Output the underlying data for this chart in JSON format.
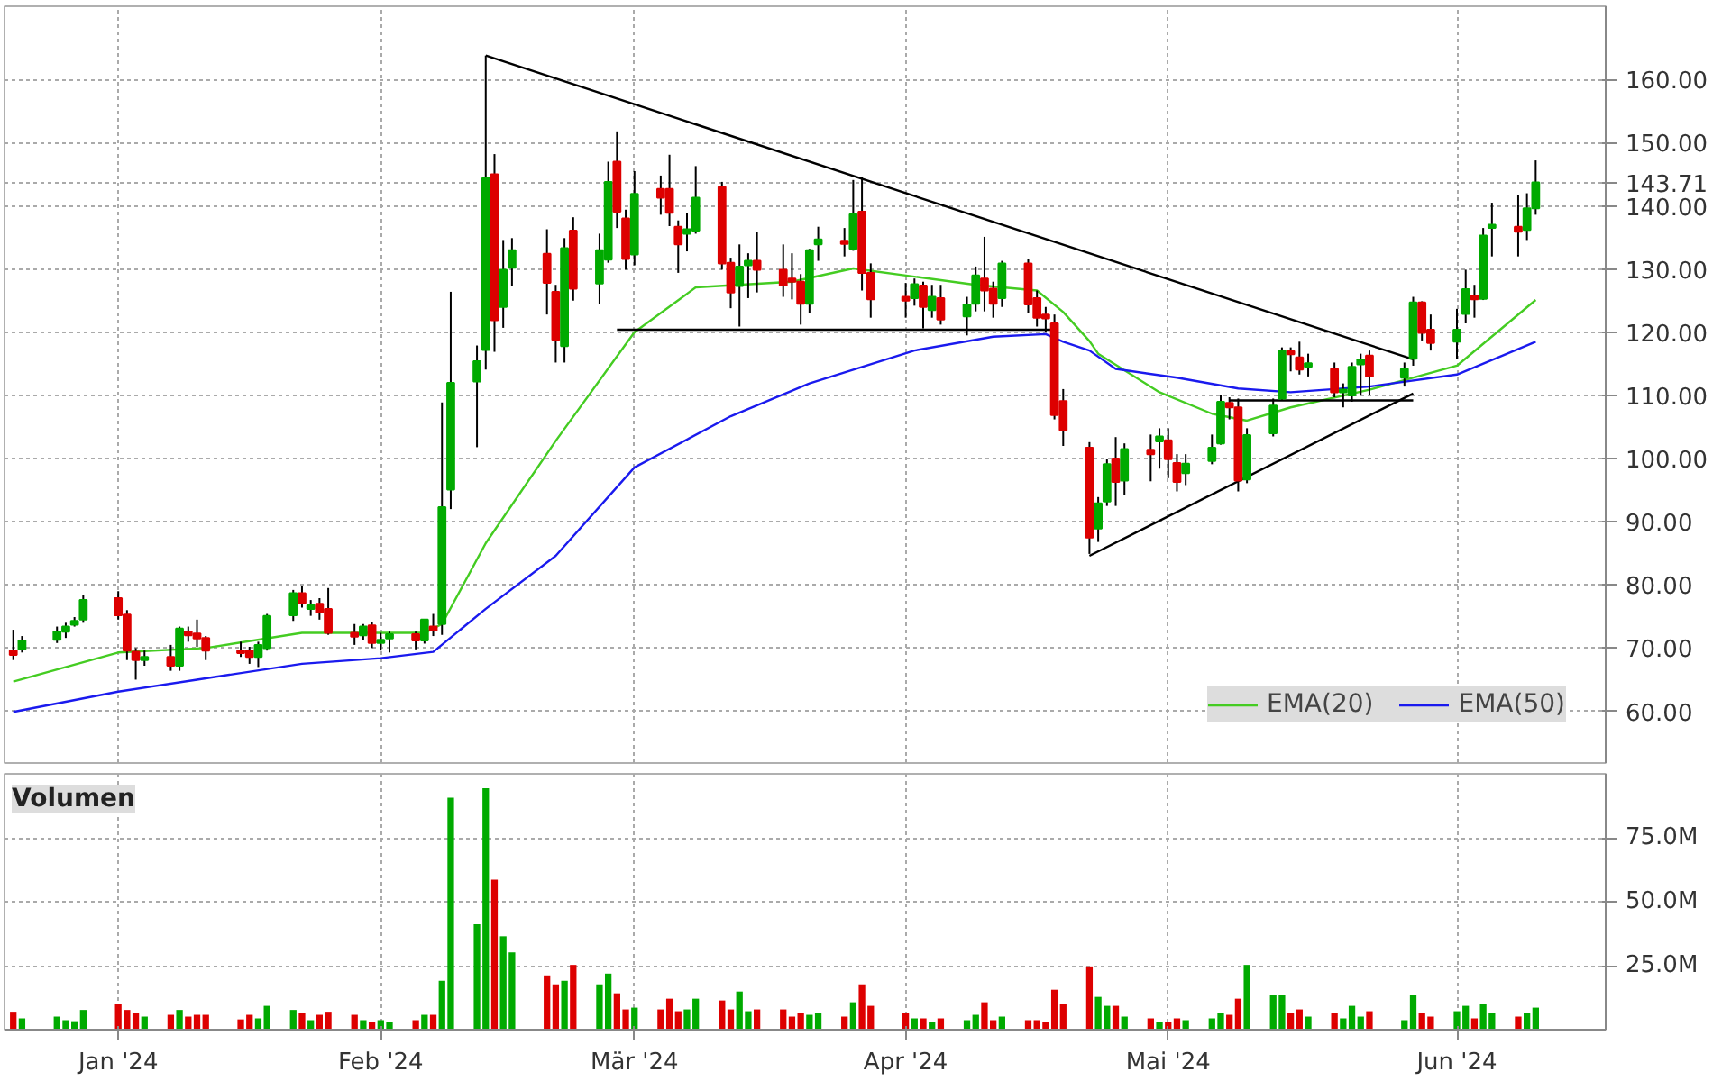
{
  "chart_data": [
    {
      "type": "candlestick",
      "x": [
        "2023-12-21",
        "2023-12-22",
        "2023-12-26",
        "2023-12-27",
        "2023-12-28",
        "2023-12-29",
        "2024-01-02",
        "2024-01-03",
        "2024-01-04",
        "2024-01-05",
        "2024-01-08",
        "2024-01-09",
        "2024-01-10",
        "2024-01-11",
        "2024-01-12",
        "2024-01-16",
        "2024-01-17",
        "2024-01-18",
        "2024-01-19",
        "2024-01-22",
        "2024-01-23",
        "2024-01-24",
        "2024-01-25",
        "2024-01-26",
        "2024-01-29",
        "2024-01-30",
        "2024-01-31",
        "2024-02-01",
        "2024-02-02",
        "2024-02-05",
        "2024-02-06",
        "2024-02-07",
        "2024-02-08",
        "2024-02-09",
        "2024-02-12",
        "2024-02-13",
        "2024-02-14",
        "2024-02-15",
        "2024-02-16",
        "2024-02-20",
        "2024-02-21",
        "2024-02-22",
        "2024-02-23",
        "2024-02-26",
        "2024-02-27",
        "2024-02-28",
        "2024-02-29",
        "2024-03-01",
        "2024-03-04",
        "2024-03-05",
        "2024-03-06",
        "2024-03-07",
        "2024-03-08",
        "2024-03-11",
        "2024-03-12",
        "2024-03-13",
        "2024-03-14",
        "2024-03-15",
        "2024-03-18",
        "2024-03-19",
        "2024-03-20",
        "2024-03-21",
        "2024-03-22",
        "2024-03-25",
        "2024-03-26",
        "2024-03-27",
        "2024-03-28",
        "2024-04-01",
        "2024-04-02",
        "2024-04-03",
        "2024-04-04",
        "2024-04-05",
        "2024-04-08",
        "2024-04-09",
        "2024-04-10",
        "2024-04-11",
        "2024-04-12",
        "2024-04-15",
        "2024-04-16",
        "2024-04-17",
        "2024-04-18",
        "2024-04-19",
        "2024-04-22",
        "2024-04-23",
        "2024-04-24",
        "2024-04-25",
        "2024-04-26",
        "2024-04-29",
        "2024-04-30",
        "2024-05-01",
        "2024-05-02",
        "2024-05-03",
        "2024-05-06",
        "2024-05-07",
        "2024-05-08",
        "2024-05-09",
        "2024-05-10",
        "2024-05-13",
        "2024-05-14",
        "2024-05-15",
        "2024-05-16",
        "2024-05-17",
        "2024-05-20",
        "2024-05-21",
        "2024-05-22",
        "2024-05-23",
        "2024-05-24",
        "2024-05-28",
        "2024-05-29",
        "2024-05-30",
        "2024-05-31",
        "2024-06-03",
        "2024-06-04",
        "2024-06-05",
        "2024-06-06",
        "2024-06-07",
        "2024-06-10",
        "2024-06-11",
        "2024-06-12"
      ],
      "ohlc": [
        [
          69.6,
          72.9,
          68.1,
          68.9
        ],
        [
          69.8,
          71.9,
          69.3,
          71.2
        ],
        [
          71.3,
          73.4,
          70.8,
          72.6
        ],
        [
          72.6,
          74.0,
          71.6,
          73.4
        ],
        [
          73.7,
          74.9,
          73.4,
          74.3
        ],
        [
          74.5,
          78.4,
          74.0,
          77.6
        ],
        [
          77.9,
          79.0,
          74.5,
          75.2
        ],
        [
          75.3,
          76.0,
          68.1,
          69.6
        ],
        [
          69.4,
          70.0,
          65.0,
          68.1
        ],
        [
          68.1,
          69.6,
          67.2,
          68.6
        ],
        [
          68.6,
          70.5,
          66.4,
          67.2
        ],
        [
          67.2,
          73.4,
          66.4,
          73.1
        ],
        [
          72.6,
          73.4,
          71.0,
          72.0
        ],
        [
          72.3,
          74.5,
          70.2,
          71.5
        ],
        [
          71.6,
          71.9,
          68.1,
          69.6
        ],
        [
          69.6,
          71.0,
          68.6,
          69.2
        ],
        [
          69.6,
          70.2,
          67.5,
          68.6
        ],
        [
          68.6,
          71.0,
          67.0,
          70.5
        ],
        [
          70.0,
          75.4,
          69.6,
          75.1
        ],
        [
          75.2,
          79.2,
          74.3,
          78.7
        ],
        [
          78.7,
          79.8,
          76.4,
          77.1
        ],
        [
          76.2,
          77.6,
          75.1,
          76.8
        ],
        [
          77.0,
          77.9,
          74.5,
          75.6
        ],
        [
          76.2,
          79.5,
          72.1,
          72.4
        ],
        [
          72.4,
          73.8,
          70.5,
          71.8
        ],
        [
          72.0,
          73.8,
          71.2,
          73.4
        ],
        [
          73.6,
          74.1,
          70.0,
          70.8
        ],
        [
          70.8,
          72.4,
          69.6,
          71.3
        ],
        [
          71.5,
          72.6,
          69.3,
          72.2
        ],
        [
          72.2,
          72.6,
          69.8,
          71.2
        ],
        [
          71.2,
          74.5,
          70.7,
          74.5
        ],
        [
          73.4,
          75.4,
          71.9,
          72.8
        ],
        [
          73.8,
          108.9,
          72.1,
          92.3
        ],
        [
          95.1,
          126.4,
          92.0,
          112.0
        ],
        [
          112.2,
          117.9,
          101.8,
          115.4
        ],
        [
          117.2,
          163.8,
          114.1,
          144.4
        ],
        [
          145.0,
          148.2,
          116.9,
          121.9
        ],
        [
          124.0,
          134.6,
          120.7,
          129.9
        ],
        [
          130.2,
          134.9,
          127.3,
          133.0
        ],
        [
          132.4,
          136.3,
          122.8,
          127.8
        ],
        [
          126.4,
          127.5,
          115.2,
          118.8
        ],
        [
          117.8,
          134.9,
          115.2,
          133.3
        ],
        [
          136.1,
          138.2,
          125.0,
          126.9
        ],
        [
          127.7,
          135.6,
          124.4,
          133.0
        ],
        [
          131.5,
          147.0,
          131.0,
          143.8
        ],
        [
          147.0,
          151.8,
          136.5,
          139.1
        ],
        [
          138.0,
          139.4,
          129.9,
          131.6
        ],
        [
          132.3,
          145.5,
          130.6,
          141.9
        ],
        [
          142.7,
          144.8,
          138.6,
          141.3
        ],
        [
          142.7,
          148.1,
          136.8,
          138.9
        ],
        [
          136.7,
          137.7,
          129.4,
          133.9
        ],
        [
          135.6,
          138.9,
          132.8,
          136.3
        ],
        [
          136.1,
          146.3,
          135.6,
          141.3
        ],
        [
          143.0,
          143.8,
          129.9,
          130.9
        ],
        [
          131.0,
          131.8,
          123.8,
          126.3
        ],
        [
          127.3,
          133.9,
          120.9,
          130.4
        ],
        [
          130.6,
          132.5,
          125.4,
          131.3
        ],
        [
          131.3,
          135.9,
          126.3,
          129.9
        ],
        [
          129.9,
          133.9,
          125.6,
          127.4
        ],
        [
          128.5,
          132.5,
          125.2,
          128.0
        ],
        [
          128.0,
          129.2,
          121.2,
          124.5
        ],
        [
          124.5,
          133.2,
          123.1,
          133.0
        ],
        [
          133.9,
          136.7,
          131.3,
          134.7
        ],
        [
          134.5,
          136.5,
          132.0,
          134.0
        ],
        [
          133.2,
          144.1,
          132.9,
          138.7
        ],
        [
          139.1,
          144.6,
          126.6,
          129.4
        ],
        [
          129.4,
          130.9,
          122.3,
          125.2
        ],
        [
          125.6,
          127.8,
          122.3,
          125.0
        ],
        [
          125.4,
          128.5,
          124.2,
          127.6
        ],
        [
          127.4,
          128.0,
          120.6,
          124.0
        ],
        [
          123.5,
          127.5,
          122.3,
          125.6
        ],
        [
          125.4,
          127.5,
          121.2,
          122.0
        ],
        [
          122.5,
          125.6,
          119.5,
          124.4
        ],
        [
          124.5,
          130.4,
          123.3,
          129.0
        ],
        [
          128.5,
          135.1,
          123.3,
          126.6
        ],
        [
          126.9,
          128.0,
          122.3,
          124.5
        ],
        [
          125.4,
          131.3,
          124.0,
          130.9
        ],
        [
          130.9,
          131.6,
          123.1,
          124.4
        ],
        [
          125.4,
          126.6,
          120.9,
          122.3
        ],
        [
          122.8,
          124.0,
          120.0,
          122.2
        ],
        [
          121.4,
          122.8,
          106.2,
          106.9
        ],
        [
          109.1,
          111.0,
          102.0,
          104.5
        ],
        [
          101.7,
          102.6,
          84.9,
          87.5
        ],
        [
          88.9,
          93.9,
          86.8,
          92.9
        ],
        [
          93.2,
          100.0,
          92.5,
          99.1
        ],
        [
          100.0,
          103.4,
          92.5,
          96.3
        ],
        [
          96.5,
          102.4,
          94.2,
          101.5
        ],
        [
          101.4,
          103.8,
          96.4,
          100.7
        ],
        [
          102.7,
          104.8,
          98.4,
          103.5
        ],
        [
          102.9,
          104.8,
          96.9,
          99.9
        ],
        [
          99.3,
          100.7,
          94.8,
          96.3
        ],
        [
          97.7,
          100.7,
          95.8,
          99.2
        ],
        [
          99.6,
          103.8,
          99.1,
          101.7
        ],
        [
          102.4,
          110.0,
          102.2,
          109.0
        ],
        [
          108.8,
          109.7,
          106.2,
          108.1
        ],
        [
          108.1,
          109.5,
          94.8,
          96.5
        ],
        [
          96.7,
          104.8,
          96.1,
          103.7
        ],
        [
          104.0,
          109.5,
          103.5,
          108.4
        ],
        [
          109.5,
          117.6,
          109.2,
          117.1
        ],
        [
          117.0,
          117.6,
          113.8,
          116.5
        ],
        [
          116.0,
          118.5,
          113.3,
          114.1
        ],
        [
          114.5,
          116.6,
          113.0,
          115.1
        ],
        [
          114.2,
          115.2,
          109.7,
          110.5
        ],
        [
          110.5,
          111.9,
          108.1,
          110.9
        ],
        [
          110.0,
          115.2,
          109.0,
          114.5
        ],
        [
          114.9,
          116.6,
          110.0,
          115.7
        ],
        [
          116.3,
          117.1,
          110.0,
          113.0
        ],
        [
          112.8,
          115.2,
          111.4,
          114.2
        ],
        [
          115.8,
          125.6,
          114.7,
          124.7
        ],
        [
          124.7,
          124.9,
          118.7,
          119.9
        ],
        [
          120.4,
          122.8,
          117.1,
          118.3
        ],
        [
          118.5,
          123.7,
          115.7,
          120.4
        ],
        [
          122.9,
          129.9,
          121.4,
          126.8
        ],
        [
          125.8,
          127.5,
          122.3,
          125.2
        ],
        [
          125.3,
          136.5,
          125.1,
          135.3
        ],
        [
          136.5,
          140.5,
          132.0,
          137.0
        ],
        [
          136.7,
          141.7,
          132.0,
          135.9
        ],
        [
          136.2,
          142.0,
          134.6,
          139.6
        ],
        [
          139.6,
          147.2,
          138.6,
          143.71
        ]
      ],
      "colors": [
        "#dd0000",
        "#00aa00",
        "#00aa00",
        "#00aa00",
        "#00aa00",
        "#00aa00",
        "#dd0000",
        "#dd0000",
        "#dd0000",
        "#00aa00",
        "#dd0000",
        "#00aa00",
        "#dd0000",
        "#dd0000",
        "#dd0000",
        "#dd0000",
        "#dd0000",
        "#00aa00",
        "#00aa00",
        "#00aa00",
        "#dd0000",
        "#00aa00",
        "#dd0000",
        "#dd0000",
        "#dd0000",
        "#00aa00",
        "#dd0000",
        "#00aa00",
        "#00aa00",
        "#dd0000",
        "#00aa00",
        "#dd0000",
        "#00aa00",
        "#00aa00",
        "#00aa00",
        "#00aa00",
        "#dd0000",
        "#00aa00",
        "#00aa00",
        "#dd0000",
        "#dd0000",
        "#00aa00",
        "#dd0000",
        "#00aa00",
        "#00aa00",
        "#dd0000",
        "#dd0000",
        "#00aa00",
        "#dd0000",
        "#dd0000",
        "#dd0000",
        "#00aa00",
        "#00aa00",
        "#dd0000",
        "#dd0000",
        "#00aa00",
        "#00aa00",
        "#dd0000",
        "#dd0000",
        "#dd0000",
        "#dd0000",
        "#00aa00",
        "#00aa00",
        "#dd0000",
        "#00aa00",
        "#dd0000",
        "#dd0000",
        "#dd0000",
        "#00aa00",
        "#dd0000",
        "#00aa00",
        "#dd0000",
        "#00aa00",
        "#00aa00",
        "#dd0000",
        "#dd0000",
        "#00aa00",
        "#dd0000",
        "#dd0000",
        "#dd0000",
        "#dd0000",
        "#dd0000",
        "#dd0000",
        "#00aa00",
        "#00aa00",
        "#dd0000",
        "#00aa00",
        "#dd0000",
        "#00aa00",
        "#dd0000",
        "#dd0000",
        "#00aa00",
        "#00aa00",
        "#00aa00",
        "#dd0000",
        "#dd0000",
        "#00aa00",
        "#00aa00",
        "#00aa00",
        "#dd0000",
        "#dd0000",
        "#00aa00",
        "#dd0000",
        "#00aa00",
        "#00aa00",
        "#00aa00",
        "#dd0000",
        "#00aa00",
        "#00aa00",
        "#dd0000",
        "#dd0000",
        "#00aa00",
        "#00aa00",
        "#dd0000",
        "#00aa00",
        "#00aa00",
        "#dd0000",
        "#00aa00",
        "#00aa00"
      ],
      "series": [
        {
          "type": "line",
          "name": "EMA(20)",
          "color": "#44cc22",
          "x": [
            "2023-12-21",
            "2024-01-02",
            "2024-01-12",
            "2024-01-23",
            "2024-02-06",
            "2024-02-08",
            "2024-02-13",
            "2024-02-21",
            "2024-03-01",
            "2024-03-08",
            "2024-03-19",
            "2024-03-26",
            "2024-04-09",
            "2024-04-16",
            "2024-04-19",
            "2024-04-22",
            "2024-04-23",
            "2024-04-30",
            "2024-05-06",
            "2024-05-10",
            "2024-05-15",
            "2024-05-24",
            "2024-06-03",
            "2024-06-12"
          ],
          "values": [
            64.7,
            69.3,
            70.0,
            72.4,
            72.4,
            73.8,
            86.6,
            102.8,
            120.0,
            127.1,
            128.0,
            130.1,
            127.5,
            126.6,
            123.2,
            118.6,
            116.6,
            110.5,
            107.1,
            106.0,
            108.1,
            110.9,
            114.7,
            125.1
          ]
        },
        {
          "type": "line",
          "name": "EMA(50)",
          "color": "#1a1aee",
          "x": [
            "2023-12-21",
            "2024-01-02",
            "2024-01-11",
            "2024-01-23",
            "2024-02-01",
            "2024-02-07",
            "2024-02-13",
            "2024-02-21",
            "2024-03-01",
            "2024-03-12",
            "2024-03-21",
            "2024-04-02",
            "2024-04-11",
            "2024-04-17",
            "2024-04-19",
            "2024-04-22",
            "2024-04-25",
            "2024-05-02",
            "2024-05-09",
            "2024-05-15",
            "2024-05-24",
            "2024-06-03",
            "2024-06-12"
          ],
          "values": [
            59.9,
            63.1,
            65.0,
            67.5,
            68.4,
            69.4,
            76.2,
            84.6,
            98.6,
            106.7,
            111.9,
            117.1,
            119.3,
            119.7,
            118.5,
            117.1,
            114.2,
            112.8,
            111.1,
            110.5,
            111.4,
            113.3,
            118.5
          ]
        },
        {
          "type": "line",
          "color": "#000000",
          "x": [
            "2024-02-13",
            "2024-05-29"
          ],
          "values": [
            163.8,
            115.7
          ]
        },
        {
          "type": "line",
          "color": "#000000",
          "x": [
            "2024-02-28",
            "2024-04-18"
          ],
          "values": [
            120.4,
            120.4
          ]
        },
        {
          "type": "line",
          "color": "#000000",
          "x": [
            "2024-04-22",
            "2024-05-29"
          ],
          "values": [
            84.6,
            110.3
          ]
        },
        {
          "type": "line",
          "color": "#000000",
          "x": [
            "2024-05-08",
            "2024-05-29"
          ],
          "values": [
            109.2,
            109.2
          ]
        }
      ],
      "xlim": [
        "2023-12-20",
        "2024-06-20"
      ],
      "ylim": [
        51.8,
        171.6
      ],
      "xticks": [
        {
          "value": "2024-01-02",
          "label": null
        },
        {
          "value": "2024-02-01",
          "label": null
        },
        {
          "value": "2024-03-01",
          "label": null
        },
        {
          "value": "2024-04-01",
          "label": null
        },
        {
          "value": "2024-05-01",
          "label": null
        },
        {
          "value": "2024-06-03",
          "label": null
        }
      ],
      "yticks": [
        {
          "value": 60,
          "label": "60.00"
        },
        {
          "value": 70,
          "label": "70.00"
        },
        {
          "value": 80,
          "label": "80.00"
        },
        {
          "value": 90,
          "label": "90.00"
        },
        {
          "value": 100,
          "label": "100.00"
        },
        {
          "value": 110,
          "label": "110.00"
        },
        {
          "value": 120,
          "label": "120.00"
        },
        {
          "value": 130,
          "label": "130.00"
        },
        {
          "value": 140,
          "label": "140.00"
        },
        {
          "value": 143.71,
          "label": "143.71"
        },
        {
          "value": 150,
          "label": "150.00"
        },
        {
          "value": 160,
          "label": "160.00"
        }
      ],
      "tick_labels": "y",
      "grid": true,
      "legend": "bottom right"
    },
    {
      "type": "bar",
      "title": "Volumen",
      "x": [
        "2023-12-21",
        "2023-12-22",
        "2023-12-26",
        "2023-12-27",
        "2023-12-28",
        "2023-12-29",
        "2024-01-02",
        "2024-01-03",
        "2024-01-04",
        "2024-01-05",
        "2024-01-08",
        "2024-01-09",
        "2024-01-10",
        "2024-01-11",
        "2024-01-12",
        "2024-01-16",
        "2024-01-17",
        "2024-01-18",
        "2024-01-19",
        "2024-01-22",
        "2024-01-23",
        "2024-01-24",
        "2024-01-25",
        "2024-01-26",
        "2024-01-29",
        "2024-01-30",
        "2024-01-31",
        "2024-02-01",
        "2024-02-02",
        "2024-02-05",
        "2024-02-06",
        "2024-02-07",
        "2024-02-08",
        "2024-02-09",
        "2024-02-12",
        "2024-02-13",
        "2024-02-14",
        "2024-02-15",
        "2024-02-16",
        "2024-02-20",
        "2024-02-21",
        "2024-02-22",
        "2024-02-23",
        "2024-02-26",
        "2024-02-27",
        "2024-02-28",
        "2024-02-29",
        "2024-03-01",
        "2024-03-04",
        "2024-03-05",
        "2024-03-06",
        "2024-03-07",
        "2024-03-08",
        "2024-03-11",
        "2024-03-12",
        "2024-03-13",
        "2024-03-14",
        "2024-03-15",
        "2024-03-18",
        "2024-03-19",
        "2024-03-20",
        "2024-03-21",
        "2024-03-22",
        "2024-03-25",
        "2024-03-26",
        "2024-03-27",
        "2024-03-28",
        "2024-04-01",
        "2024-04-02",
        "2024-04-03",
        "2024-04-04",
        "2024-04-05",
        "2024-04-08",
        "2024-04-09",
        "2024-04-10",
        "2024-04-11",
        "2024-04-12",
        "2024-04-15",
        "2024-04-16",
        "2024-04-17",
        "2024-04-18",
        "2024-04-19",
        "2024-04-22",
        "2024-04-23",
        "2024-04-24",
        "2024-04-25",
        "2024-04-26",
        "2024-04-29",
        "2024-04-30",
        "2024-05-01",
        "2024-05-02",
        "2024-05-03",
        "2024-05-06",
        "2024-05-07",
        "2024-05-08",
        "2024-05-09",
        "2024-05-10",
        "2024-05-13",
        "2024-05-14",
        "2024-05-15",
        "2024-05-16",
        "2024-05-17",
        "2024-05-20",
        "2024-05-21",
        "2024-05-22",
        "2024-05-23",
        "2024-05-24",
        "2024-05-28",
        "2024-05-29",
        "2024-05-30",
        "2024-05-31",
        "2024-06-03",
        "2024-06-04",
        "2024-06-05",
        "2024-06-06",
        "2024-06-07",
        "2024-06-10",
        "2024-06-11",
        "2024-06-12"
      ],
      "values": [
        7.0,
        4.4,
        5.1,
        3.7,
        3.3,
        7.7,
        10.0,
        7.7,
        6.5,
        5.1,
        5.8,
        7.7,
        5.1,
        5.8,
        5.8,
        4.0,
        5.8,
        4.4,
        9.3,
        7.7,
        6.5,
        3.7,
        5.8,
        7.0,
        5.8,
        3.7,
        3.0,
        3.7,
        3.0,
        3.7,
        5.8,
        5.8,
        19.1,
        90.7,
        41.2,
        94.4,
        58.6,
        36.5,
        30.2,
        21.2,
        17.7,
        19.1,
        25.3,
        17.7,
        21.9,
        14.2,
        7.9,
        8.6,
        7.9,
        12.1,
        7.2,
        7.9,
        12.1,
        11.4,
        7.9,
        14.9,
        7.2,
        7.9,
        7.9,
        5.1,
        6.5,
        5.8,
        6.5,
        5.1,
        10.7,
        17.7,
        9.3,
        6.5,
        4.4,
        4.4,
        3.0,
        4.4,
        3.7,
        5.8,
        10.7,
        3.7,
        5.1,
        3.7,
        3.7,
        3.0,
        15.6,
        10.0,
        24.7,
        12.8,
        9.3,
        9.3,
        5.1,
        4.4,
        3.0,
        3.0,
        4.4,
        3.7,
        4.4,
        6.5,
        5.8,
        12.1,
        25.3,
        13.5,
        13.5,
        6.5,
        7.9,
        5.1,
        6.5,
        4.4,
        9.3,
        5.1,
        7.2,
        3.7,
        13.5,
        6.5,
        5.1,
        7.2,
        9.3,
        4.4,
        10.0,
        6.5,
        5.1,
        6.5,
        8.6
      ],
      "colors": [
        "#dd0000",
        "#00aa00",
        "#00aa00",
        "#00aa00",
        "#00aa00",
        "#00aa00",
        "#dd0000",
        "#dd0000",
        "#dd0000",
        "#00aa00",
        "#dd0000",
        "#00aa00",
        "#dd0000",
        "#dd0000",
        "#dd0000",
        "#dd0000",
        "#dd0000",
        "#00aa00",
        "#00aa00",
        "#00aa00",
        "#dd0000",
        "#00aa00",
        "#dd0000",
        "#dd0000",
        "#dd0000",
        "#00aa00",
        "#dd0000",
        "#00aa00",
        "#00aa00",
        "#dd0000",
        "#00aa00",
        "#dd0000",
        "#00aa00",
        "#00aa00",
        "#00aa00",
        "#00aa00",
        "#dd0000",
        "#00aa00",
        "#00aa00",
        "#dd0000",
        "#dd0000",
        "#00aa00",
        "#dd0000",
        "#00aa00",
        "#00aa00",
        "#dd0000",
        "#dd0000",
        "#00aa00",
        "#dd0000",
        "#dd0000",
        "#dd0000",
        "#00aa00",
        "#00aa00",
        "#dd0000",
        "#dd0000",
        "#00aa00",
        "#00aa00",
        "#dd0000",
        "#dd0000",
        "#dd0000",
        "#dd0000",
        "#00aa00",
        "#00aa00",
        "#dd0000",
        "#00aa00",
        "#dd0000",
        "#dd0000",
        "#dd0000",
        "#00aa00",
        "#dd0000",
        "#00aa00",
        "#dd0000",
        "#00aa00",
        "#00aa00",
        "#dd0000",
        "#dd0000",
        "#00aa00",
        "#dd0000",
        "#dd0000",
        "#dd0000",
        "#dd0000",
        "#dd0000",
        "#dd0000",
        "#00aa00",
        "#00aa00",
        "#dd0000",
        "#00aa00",
        "#dd0000",
        "#00aa00",
        "#dd0000",
        "#dd0000",
        "#00aa00",
        "#00aa00",
        "#00aa00",
        "#dd0000",
        "#dd0000",
        "#00aa00",
        "#00aa00",
        "#00aa00",
        "#dd0000",
        "#dd0000",
        "#00aa00",
        "#dd0000",
        "#00aa00",
        "#00aa00",
        "#00aa00",
        "#dd0000",
        "#00aa00",
        "#00aa00",
        "#dd0000",
        "#dd0000",
        "#00aa00",
        "#00aa00",
        "#dd0000",
        "#00aa00",
        "#00aa00",
        "#dd0000",
        "#00aa00",
        "#00aa00"
      ],
      "xlim": [
        "2023-12-20",
        "2024-06-20"
      ],
      "ylim": [
        0,
        100
      ],
      "xticks": [
        {
          "value": "2024-01-02",
          "label": "Jan '24"
        },
        {
          "value": "2024-02-01",
          "label": "Feb '24"
        },
        {
          "value": "2024-03-01",
          "label": "Mär '24"
        },
        {
          "value": "2024-04-01",
          "label": "Apr '24"
        },
        {
          "value": "2024-05-01",
          "label": "Mai '24"
        },
        {
          "value": "2024-06-03",
          "label": "Jun '24"
        }
      ],
      "yticks": [
        {
          "value": 25,
          "label": "25.0M"
        },
        {
          "value": 50,
          "label": "50.0M"
        },
        {
          "value": 75,
          "label": "75.0M"
        }
      ],
      "grid": true
    }
  ]
}
